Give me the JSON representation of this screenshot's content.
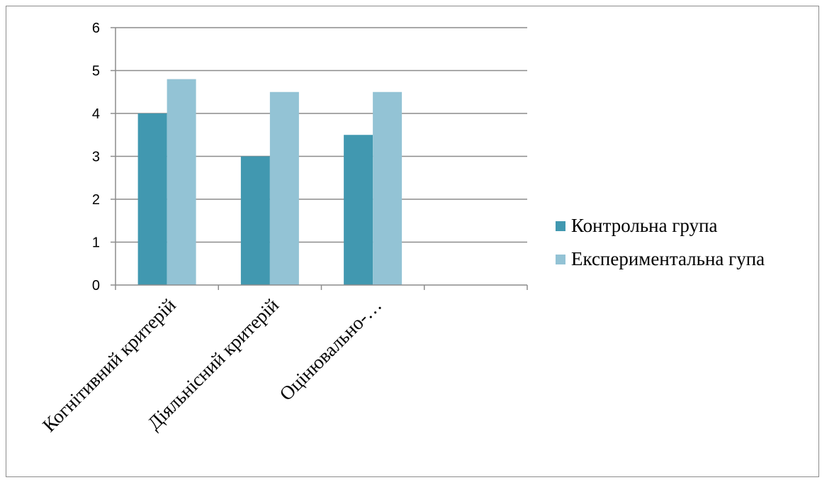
{
  "chart_data": {
    "type": "bar",
    "title": "",
    "xlabel": "",
    "ylabel": "",
    "categories": [
      "Когнітивний критерій",
      "Діяльнісний критерій",
      "Оцінювально-…",
      ""
    ],
    "series": [
      {
        "name": "Контрольна група",
        "values": [
          4,
          3,
          3.5,
          null
        ],
        "color": "#4198b0"
      },
      {
        "name": "Експериментальна гупа",
        "values": [
          4.8,
          4.5,
          4.5,
          null
        ],
        "color": "#93c3d5"
      }
    ],
    "ylim": [
      0,
      6
    ],
    "yticks": [
      0,
      1,
      2,
      3,
      4,
      5,
      6
    ],
    "grid": true,
    "legend_position": "right",
    "colors": {
      "gridline": "#8c8c8c",
      "axis": "#8c8c8c"
    }
  }
}
